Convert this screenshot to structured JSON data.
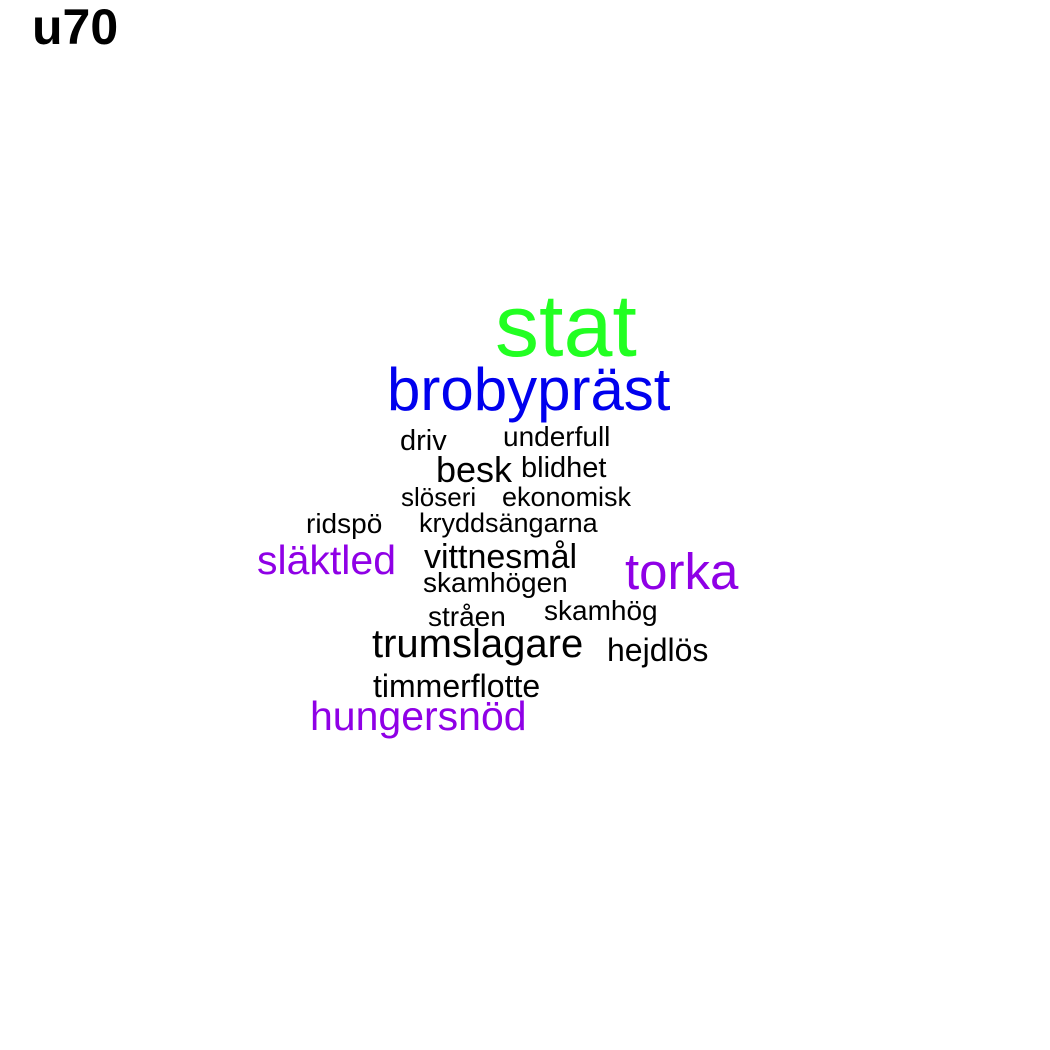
{
  "title": "u70",
  "colors": {
    "green": "#22ff22",
    "blue": "#0000ee",
    "purple": "#8f00e6",
    "black": "#000000"
  },
  "words": [
    {
      "text": "stat",
      "color": "green"
    },
    {
      "text": "brobypräst",
      "color": "blue"
    },
    {
      "text": "driv",
      "color": "black"
    },
    {
      "text": "underfull",
      "color": "black"
    },
    {
      "text": "besk",
      "color": "black"
    },
    {
      "text": "blidhet",
      "color": "black"
    },
    {
      "text": "slöseri",
      "color": "black"
    },
    {
      "text": "ekonomisk",
      "color": "black"
    },
    {
      "text": "ridspö",
      "color": "black"
    },
    {
      "text": "kryddsängarna",
      "color": "black"
    },
    {
      "text": "släktled",
      "color": "purple"
    },
    {
      "text": "vittnesmål",
      "color": "black"
    },
    {
      "text": "torka",
      "color": "purple"
    },
    {
      "text": "skamhögen",
      "color": "black"
    },
    {
      "text": "stråen",
      "color": "black"
    },
    {
      "text": "skamhög",
      "color": "black"
    },
    {
      "text": "trumslagare",
      "color": "black"
    },
    {
      "text": "hejdlös",
      "color": "black"
    },
    {
      "text": "timmerflotte",
      "color": "black"
    },
    {
      "text": "hungersnöd",
      "color": "purple"
    }
  ]
}
